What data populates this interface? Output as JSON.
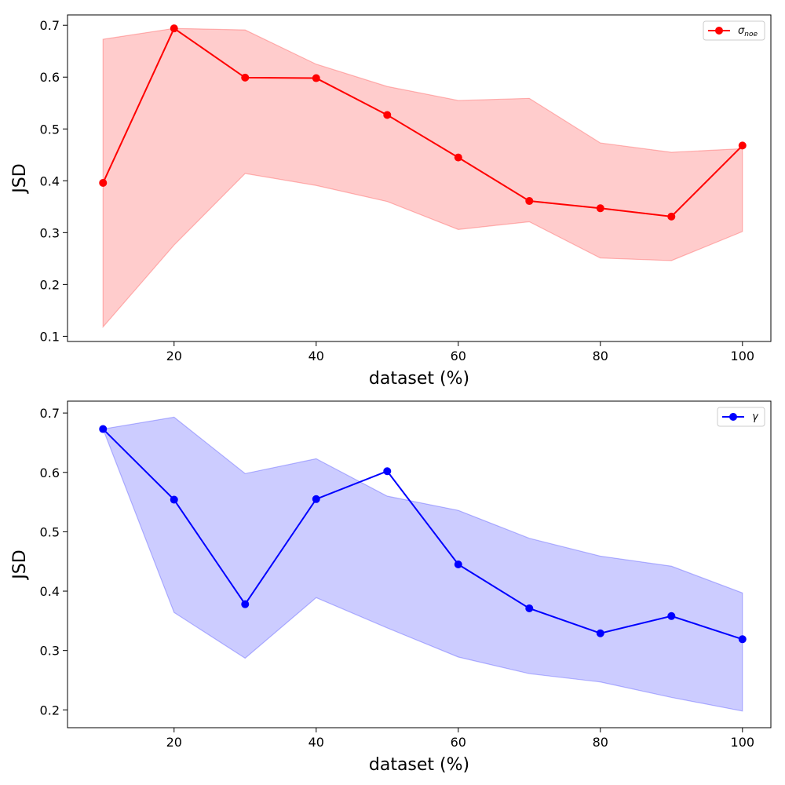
{
  "chart_data": [
    {
      "type": "line",
      "xlabel": "dataset (%)",
      "ylabel": "JSD",
      "xlim": [
        5,
        104
      ],
      "ylim": [
        0.09,
        0.72
      ],
      "xticks": [
        20,
        40,
        60,
        80,
        100
      ],
      "xtick_labels": [
        "20",
        "40",
        "60",
        "80",
        "100"
      ],
      "yticks": [
        0.1,
        0.2,
        0.3,
        0.4,
        0.5,
        0.6,
        0.7
      ],
      "ytick_labels": [
        "0.1",
        "0.2",
        "0.3",
        "0.4",
        "0.5",
        "0.6",
        "0.7"
      ],
      "grid": false,
      "legend_position": "top-right",
      "x": [
        10,
        20,
        30,
        40,
        50,
        60,
        70,
        80,
        90,
        100
      ],
      "series": [
        {
          "name": "σ",
          "name_sub": "noe",
          "color": "#ff0000",
          "band_color": "#ff0000",
          "values": [
            0.396,
            0.694,
            0.599,
            0.598,
            0.527,
            0.445,
            0.361,
            0.347,
            0.331,
            0.468
          ],
          "upper": [
            0.673,
            0.694,
            0.691,
            0.625,
            0.582,
            0.555,
            0.559,
            0.473,
            0.455,
            0.462
          ],
          "lower": [
            0.118,
            0.276,
            0.414,
            0.391,
            0.36,
            0.306,
            0.321,
            0.251,
            0.246,
            0.302
          ]
        }
      ]
    },
    {
      "type": "line",
      "xlabel": "dataset (%)",
      "ylabel": "JSD",
      "xlim": [
        5,
        104
      ],
      "ylim": [
        0.17,
        0.72
      ],
      "xticks": [
        20,
        40,
        60,
        80,
        100
      ],
      "xtick_labels": [
        "20",
        "40",
        "60",
        "80",
        "100"
      ],
      "yticks": [
        0.2,
        0.3,
        0.4,
        0.5,
        0.6,
        0.7
      ],
      "ytick_labels": [
        "0.2",
        "0.3",
        "0.4",
        "0.5",
        "0.6",
        "0.7"
      ],
      "grid": false,
      "legend_position": "top-right",
      "x": [
        10,
        20,
        30,
        40,
        50,
        60,
        70,
        80,
        90,
        100
      ],
      "series": [
        {
          "name": "γ",
          "name_sub": "",
          "color": "#0000ff",
          "band_color": "#0000ff",
          "values": [
            0.673,
            0.554,
            0.378,
            0.555,
            0.602,
            0.445,
            0.371,
            0.329,
            0.358,
            0.319
          ],
          "upper": [
            0.673,
            0.693,
            0.598,
            0.623,
            0.56,
            0.536,
            0.489,
            0.459,
            0.442,
            0.397
          ],
          "lower": [
            0.673,
            0.364,
            0.287,
            0.389,
            0.338,
            0.289,
            0.261,
            0.247,
            0.221,
            0.198
          ]
        }
      ]
    }
  ]
}
